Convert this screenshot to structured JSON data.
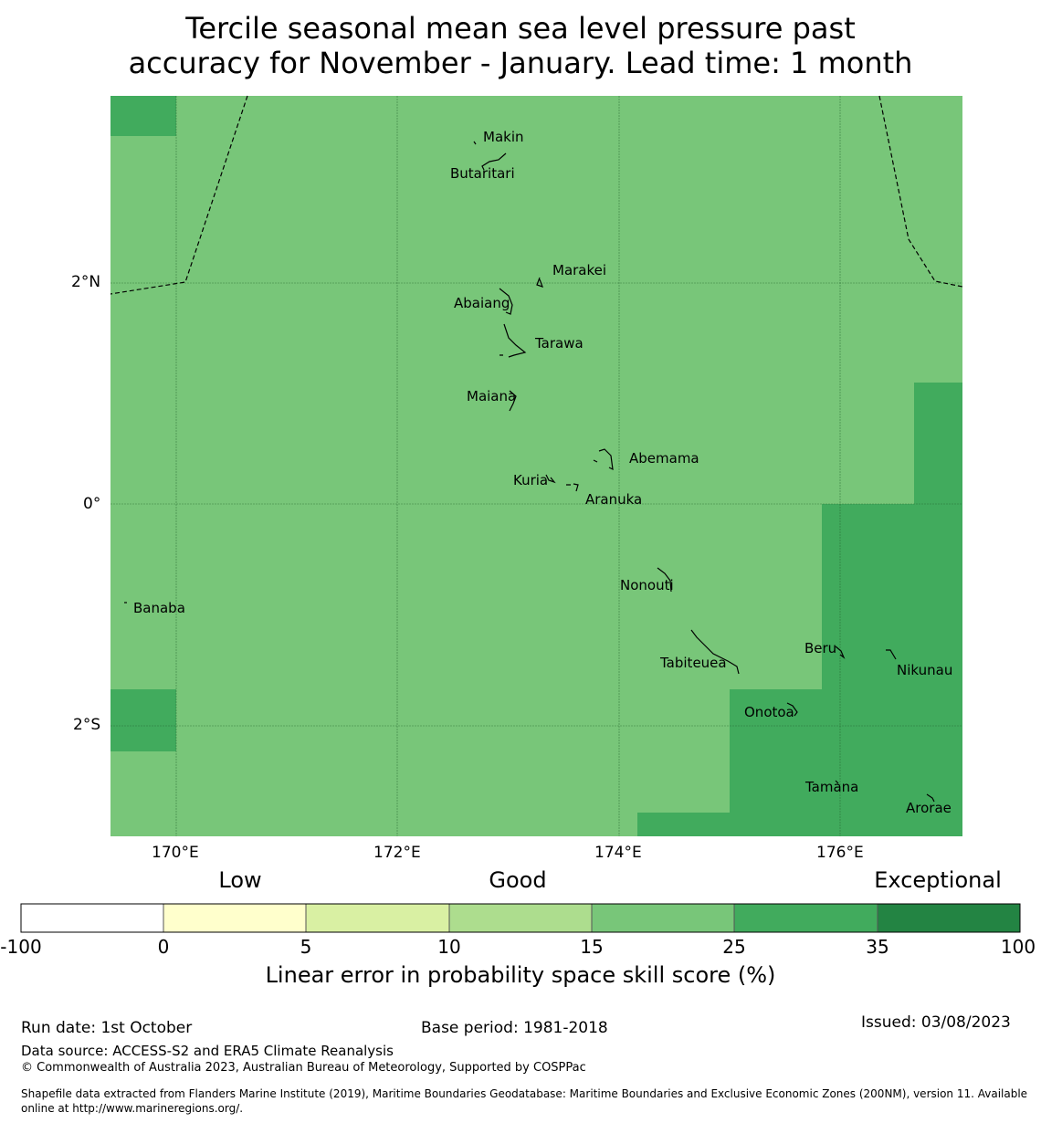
{
  "title": {
    "line1": "Tercile seasonal mean sea level pressure past",
    "line2": "accuracy for November - January. Lead time: 1 month"
  },
  "map": {
    "lon_ticks": [
      "170°E",
      "172°E",
      "174°E",
      "176°E"
    ],
    "lat_ticks": [
      "2°N",
      "0°",
      "2°S"
    ],
    "islands": {
      "makin": "Makin",
      "butaritari": "Butaritari",
      "marakei": "Marakei",
      "abaiang": "Abaiang",
      "tarawa": "Tarawa",
      "maiana": "Maiana",
      "abemama": "Abemama",
      "kuria": "Kuria",
      "aranuka": "Aranuka",
      "nonouti": "Nonouti",
      "banaba": "Banaba",
      "beru": "Beru",
      "tabiteuea": "Tabiteuea",
      "nikunau": "Nikunau",
      "onotoa": "Onotoa",
      "tamana": "Tamana",
      "arorae": "Arorae"
    },
    "colors": {
      "category_15_25": "#78c679",
      "category_25_35": "#41ab5d"
    }
  },
  "colorbar": {
    "categories": {
      "low": "Low",
      "good": "Good",
      "exceptional": "Exceptional"
    },
    "ticks": [
      "-100",
      "0",
      "5",
      "10",
      "15",
      "25",
      "35",
      "100"
    ],
    "colors": [
      "#ffffff",
      "#ffffcc",
      "#d9f0a3",
      "#addd8e",
      "#78c679",
      "#41ab5d",
      "#238443"
    ],
    "title": "Linear error in probability space skill score (%)"
  },
  "footer": {
    "run_date": "Run date: 1st October",
    "base_period": "Base period: 1981-2018",
    "issued": "Issued: 03/08/2023",
    "data_source": "Data source: ACCESS-S2 and ERA5 Climate Reanalysis",
    "copyright": "© Commonwealth of Australia 2023, Australian Bureau of Meteorology, Supported by COSPPac",
    "shapefile_line1": "Shapefile data extracted from Flanders Marine Institute (2019), Maritime Boundaries Geodatabase: Maritime Boundaries and Exclusive Economic Zones (200NM), version 11. Available",
    "shapefile_line2": "online at http://www.marineregions.org/."
  }
}
